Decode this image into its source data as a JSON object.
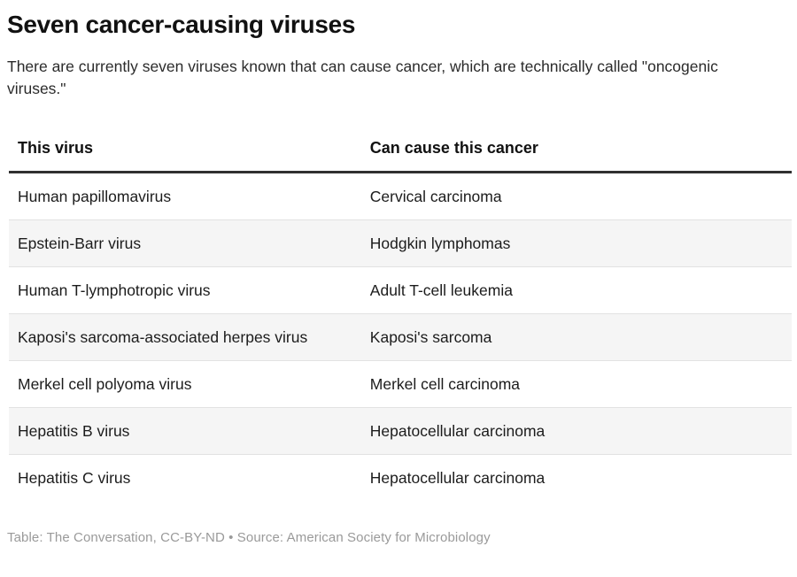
{
  "title": "Seven cancer-causing viruses",
  "subtitle": "There are currently seven viruses known that can cause cancer, which are technically called \"oncogenic viruses.\"",
  "table": {
    "columns": [
      "This virus",
      "Can cause this cancer"
    ],
    "rows": [
      {
        "virus": "Human papillomavirus",
        "cancer": "Cervical carcinoma"
      },
      {
        "virus": "Epstein-Barr virus",
        "cancer": "Hodgkin lymphomas"
      },
      {
        "virus": "Human T-lymphotropic virus",
        "cancer": "Adult T-cell leukemia"
      },
      {
        "virus": "Kaposi's sarcoma-associated herpes virus",
        "cancer": "Kaposi's sarcoma"
      },
      {
        "virus": "Merkel cell polyoma virus",
        "cancer": "Merkel cell carcinoma"
      },
      {
        "virus": "Hepatitis B virus",
        "cancer": "Hepatocellular carcinoma"
      },
      {
        "virus": "Hepatitis C virus",
        "cancer": "Hepatocellular carcinoma"
      }
    ]
  },
  "footer": "Table: The Conversation, CC-BY-ND • Source: American Society for Microbiology",
  "colors": {
    "stripe_row": "#f5f5f5",
    "row_divider": "#e2e2e2",
    "header_rule": "#303030",
    "title_text": "#111111",
    "body_text": "#1c1c1c",
    "footer_text": "#9a9a9a"
  },
  "chart_data": {
    "type": "table",
    "title": "Seven cancer-causing viruses",
    "subtitle": "There are currently seven viruses known that can cause cancer, which are technically called \"oncogenic viruses.\"",
    "columns": [
      "This virus",
      "Can cause this cancer"
    ],
    "rows": [
      [
        "Human papillomavirus",
        "Cervical carcinoma"
      ],
      [
        "Epstein-Barr virus",
        "Hodgkin lymphomas"
      ],
      [
        "Human T-lymphotropic virus",
        "Adult T-cell leukemia"
      ],
      [
        "Kaposi's sarcoma-associated herpes virus",
        "Kaposi's sarcoma"
      ],
      [
        "Merkel cell polyoma virus",
        "Merkel cell carcinoma"
      ],
      [
        "Hepatitis B virus",
        "Hepatocellular carcinoma"
      ],
      [
        "Hepatitis C virus",
        "Hepatocellular carcinoma"
      ]
    ],
    "layout": {
      "zebra_striping": true,
      "stripe_rows": [
        2,
        4,
        6
      ],
      "credit": "Table: The Conversation, CC-BY-ND • Source: American Society for Microbiology"
    }
  }
}
